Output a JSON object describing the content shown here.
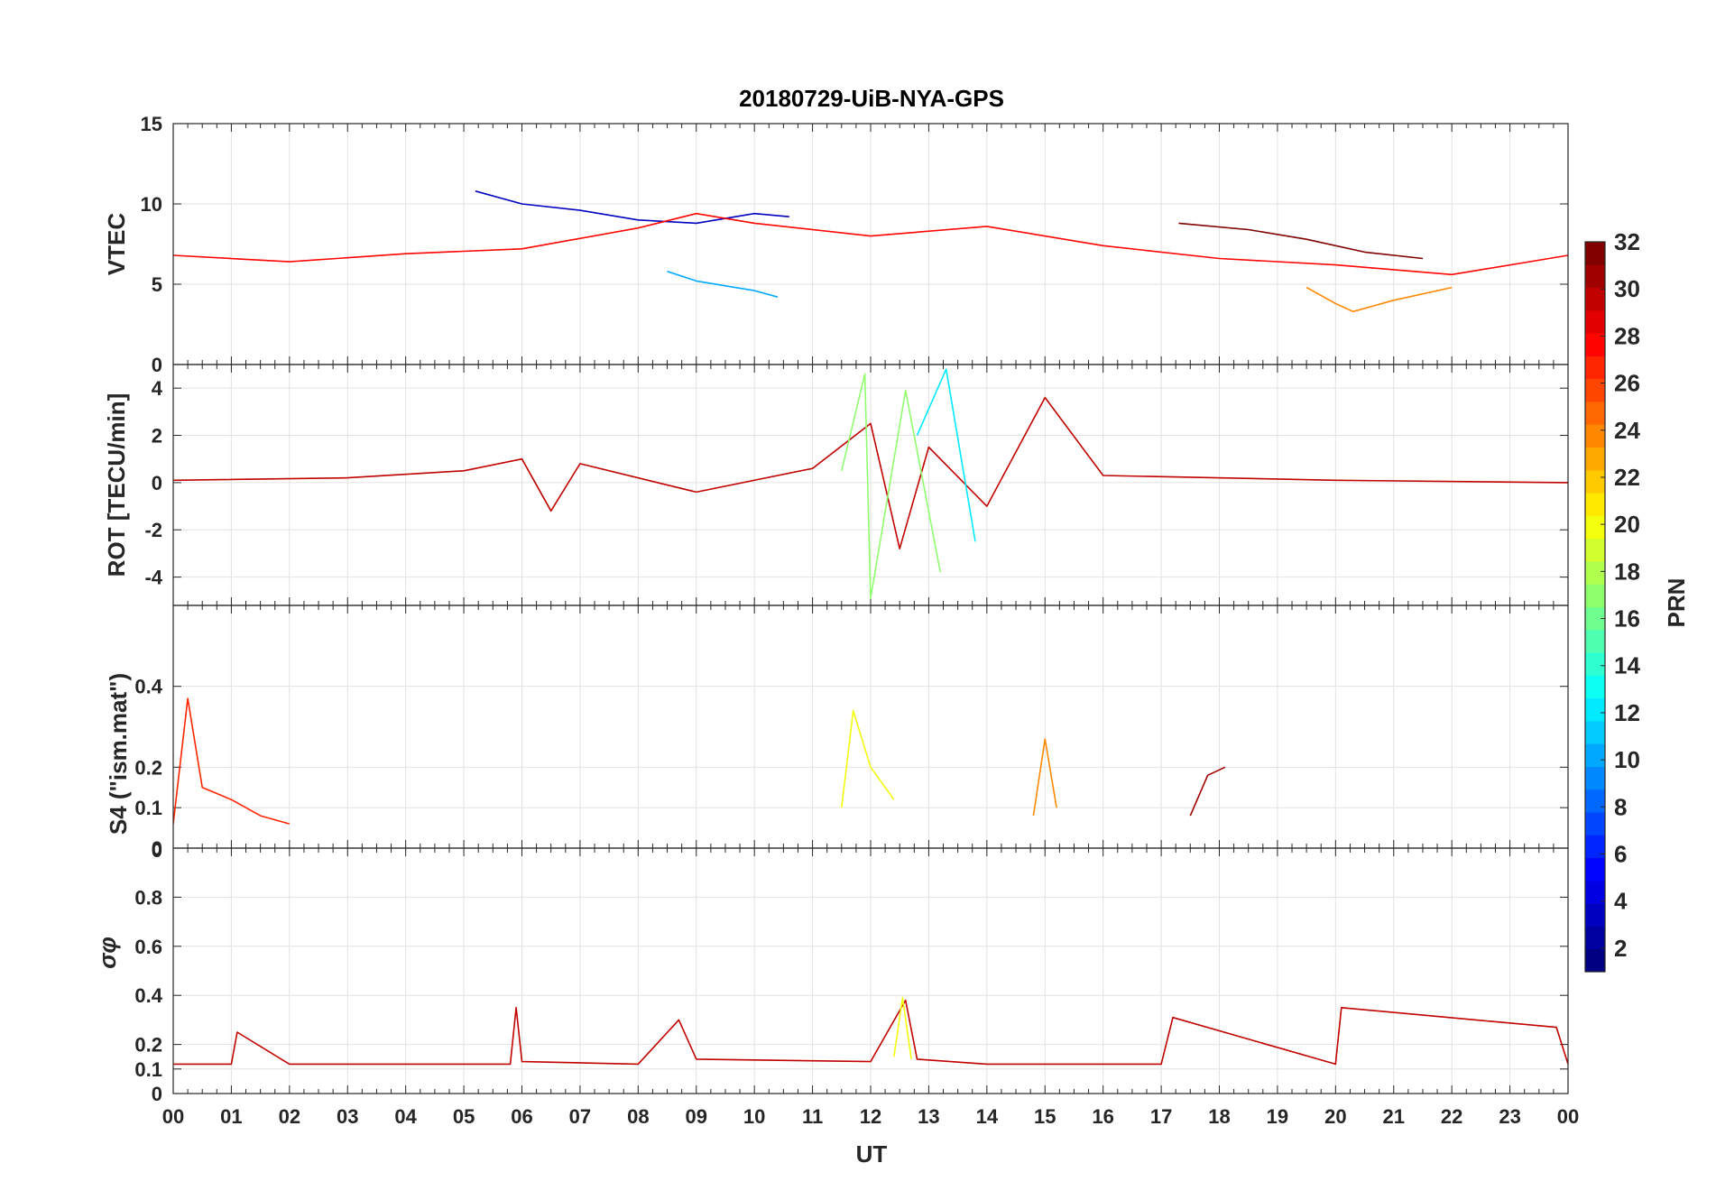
{
  "chart_data": [
    {
      "type": "line",
      "panel": "vtec",
      "title": "20180729-UiB-NYA-GPS",
      "ylabel": "VTEC",
      "ylim": [
        0,
        15
      ],
      "yticks": [
        0,
        5,
        10,
        15
      ],
      "ytick_labels": [
        "0",
        "5",
        "10",
        "15"
      ],
      "xlim": [
        0,
        24
      ],
      "series": [
        {
          "prn": 3,
          "x": [
            5.2,
            6.0,
            7.0,
            8.0,
            9.0,
            10.0,
            10.6
          ],
          "y": [
            10.8,
            10.0,
            9.6,
            9.0,
            8.8,
            9.4,
            9.2
          ]
        },
        {
          "prn": 10,
          "x": [
            8.5,
            9.0,
            9.5,
            10.0,
            10.4
          ],
          "y": [
            5.8,
            5.2,
            4.9,
            4.6,
            4.2
          ]
        },
        {
          "prn": 28,
          "x": [
            0.0,
            2.0,
            4.0,
            6.0,
            8.0,
            9.0,
            10.0,
            12.0,
            14.0,
            16.0,
            18.0,
            20.0,
            22.0,
            24.0
          ],
          "y": [
            6.8,
            6.4,
            6.9,
            7.2,
            8.5,
            9.4,
            8.8,
            8.0,
            8.6,
            7.4,
            6.6,
            6.2,
            5.6,
            6.8
          ]
        },
        {
          "prn": 32,
          "x": [
            17.3,
            18.5,
            19.5,
            20.5,
            21.5
          ],
          "y": [
            8.8,
            8.4,
            7.8,
            7.0,
            6.6
          ]
        },
        {
          "prn": 24,
          "x": [
            19.5,
            20.0,
            20.3,
            21.0,
            22.0
          ],
          "y": [
            4.8,
            3.8,
            3.3,
            4.0,
            4.8
          ]
        }
      ]
    },
    {
      "type": "line",
      "panel": "rot",
      "ylabel": "ROT [TECU/min]",
      "ylim": [
        -5.2,
        5.0
      ],
      "yticks": [
        -4,
        -2,
        0,
        2,
        4
      ],
      "ytick_labels": [
        "-4",
        "-2",
        "0",
        "2",
        "4"
      ],
      "xlim": [
        0,
        24
      ],
      "series": [
        {
          "prn": 30,
          "x": [
            0,
            3,
            5,
            6,
            6.5,
            7,
            9,
            11,
            12,
            12.5,
            13,
            14,
            15,
            16,
            20,
            24
          ],
          "y": [
            0.1,
            0.2,
            0.5,
            1.0,
            -1.2,
            0.8,
            -0.4,
            0.6,
            2.5,
            -2.8,
            1.5,
            -1.0,
            3.6,
            0.3,
            0.1,
            0.0
          ]
        },
        {
          "prn": 17,
          "x": [
            11.5,
            11.9,
            12.0,
            12.6,
            13.2
          ],
          "y": [
            0.5,
            4.6,
            -4.9,
            3.9,
            -3.8
          ]
        },
        {
          "prn": 12,
          "x": [
            12.8,
            13.3,
            13.8
          ],
          "y": [
            2.0,
            4.8,
            -2.5
          ]
        }
      ]
    },
    {
      "type": "line",
      "panel": "s4",
      "ylabel": "S4 (\"ism.mat\")",
      "ylim": [
        0,
        0.6
      ],
      "yticks": [
        0,
        0.1,
        0.2,
        0.4
      ],
      "ytick_labels": [
        "0",
        "0.1",
        "0.2",
        "0.4"
      ],
      "extra_ytick_labels": [
        "0"
      ],
      "xlim": [
        0,
        24
      ],
      "series": [
        {
          "prn": 27,
          "x": [
            0.0,
            0.25,
            0.5,
            1.0,
            1.5,
            2.0
          ],
          "y": [
            0.06,
            0.37,
            0.15,
            0.12,
            0.08,
            0.06
          ]
        },
        {
          "prn": 20,
          "x": [
            11.5,
            11.7,
            12.0,
            12.4
          ],
          "y": [
            0.1,
            0.34,
            0.2,
            0.12
          ]
        },
        {
          "prn": 24,
          "x": [
            14.8,
            15.0,
            15.2
          ],
          "y": [
            0.08,
            0.27,
            0.1
          ]
        },
        {
          "prn": 31,
          "x": [
            17.5,
            17.8,
            18.1
          ],
          "y": [
            0.08,
            0.18,
            0.2
          ]
        }
      ]
    },
    {
      "type": "line",
      "panel": "sigma_phi",
      "ylabel": "σφ",
      "ylim": [
        0,
        1.0
      ],
      "yticks": [
        0,
        0.1,
        0.2,
        0.4,
        0.6,
        0.8
      ],
      "ytick_labels": [
        "0",
        "0.1",
        "0.2",
        "0.4",
        "0.6",
        "0.8"
      ],
      "xlim": [
        0,
        24
      ],
      "series": [
        {
          "prn": 30,
          "x": [
            0,
            1.0,
            1.1,
            2,
            4,
            5.8,
            5.9,
            6,
            8,
            8.7,
            9,
            12,
            12.6,
            12.8,
            14,
            17,
            17.2,
            20,
            20.1,
            23.8,
            24
          ],
          "y": [
            0.12,
            0.12,
            0.25,
            0.12,
            0.12,
            0.12,
            0.35,
            0.13,
            0.12,
            0.3,
            0.14,
            0.13,
            0.38,
            0.14,
            0.12,
            0.12,
            0.31,
            0.12,
            0.35,
            0.27,
            0.12
          ]
        },
        {
          "prn": 20,
          "x": [
            12.4,
            12.55,
            12.7
          ],
          "y": [
            0.15,
            0.39,
            0.14
          ]
        }
      ]
    }
  ],
  "x_axis": {
    "label": "UT",
    "tick_labels": [
      "00",
      "01",
      "02",
      "03",
      "04",
      "05",
      "06",
      "07",
      "08",
      "09",
      "10",
      "11",
      "12",
      "13",
      "14",
      "15",
      "16",
      "17",
      "18",
      "19",
      "20",
      "21",
      "22",
      "23",
      "00"
    ]
  },
  "colorbar": {
    "label": "PRN",
    "range": [
      1,
      32
    ],
    "tick_labels": [
      "2",
      "4",
      "6",
      "8",
      "10",
      "12",
      "14",
      "16",
      "18",
      "20",
      "22",
      "24",
      "26",
      "28",
      "30",
      "32"
    ],
    "colormap": "jet"
  }
}
